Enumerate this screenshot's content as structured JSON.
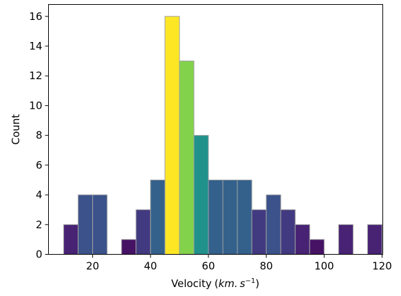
{
  "chart_data": {
    "type": "bar",
    "title": "",
    "xlabel": "Velocity",
    "xlabel_unit_prefix": "(",
    "xlabel_unit_km": "km.",
    "xlabel_unit_s": "s",
    "xlabel_unit_exp": "−1",
    "xlabel_unit_suffix": ")",
    "ylabel": "Count",
    "xlim": [
      4.75,
      120.25
    ],
    "ylim": [
      0,
      16.8
    ],
    "xticks": [
      20,
      40,
      60,
      80,
      100,
      120
    ],
    "yticks": [
      0,
      2,
      4,
      6,
      8,
      10,
      12,
      14,
      16
    ],
    "bin_width": 5,
    "bins": [
      {
        "x0": 10,
        "x1": 15,
        "count": 2
      },
      {
        "x0": 15,
        "x1": 20,
        "count": 4
      },
      {
        "x0": 20,
        "x1": 25,
        "count": 4
      },
      {
        "x0": 25,
        "x1": 30,
        "count": 0
      },
      {
        "x0": 30,
        "x1": 35,
        "count": 1
      },
      {
        "x0": 35,
        "x1": 40,
        "count": 3
      },
      {
        "x0": 40,
        "x1": 45,
        "count": 5
      },
      {
        "x0": 45,
        "x1": 50,
        "count": 16
      },
      {
        "x0": 50,
        "x1": 55,
        "count": 13
      },
      {
        "x0": 55,
        "x1": 60,
        "count": 8
      },
      {
        "x0": 60,
        "x1": 65,
        "count": 5
      },
      {
        "x0": 65,
        "x1": 70,
        "count": 5
      },
      {
        "x0": 70,
        "x1": 75,
        "count": 5
      },
      {
        "x0": 75,
        "x1": 80,
        "count": 3
      },
      {
        "x0": 80,
        "x1": 85,
        "count": 4
      },
      {
        "x0": 85,
        "x1": 90,
        "count": 3
      },
      {
        "x0": 90,
        "x1": 95,
        "count": 2
      },
      {
        "x0": 95,
        "x1": 100,
        "count": 1
      },
      {
        "x0": 100,
        "x1": 105,
        "count": 0
      },
      {
        "x0": 105,
        "x1": 110,
        "count": 2
      },
      {
        "x0": 110,
        "x1": 115,
        "count": 0
      },
      {
        "x0": 115,
        "x1": 120,
        "count": 2
      }
    ],
    "colormap": "viridis",
    "bar_edge_color": "#a0a0a0",
    "grid": false,
    "legend": "none"
  }
}
